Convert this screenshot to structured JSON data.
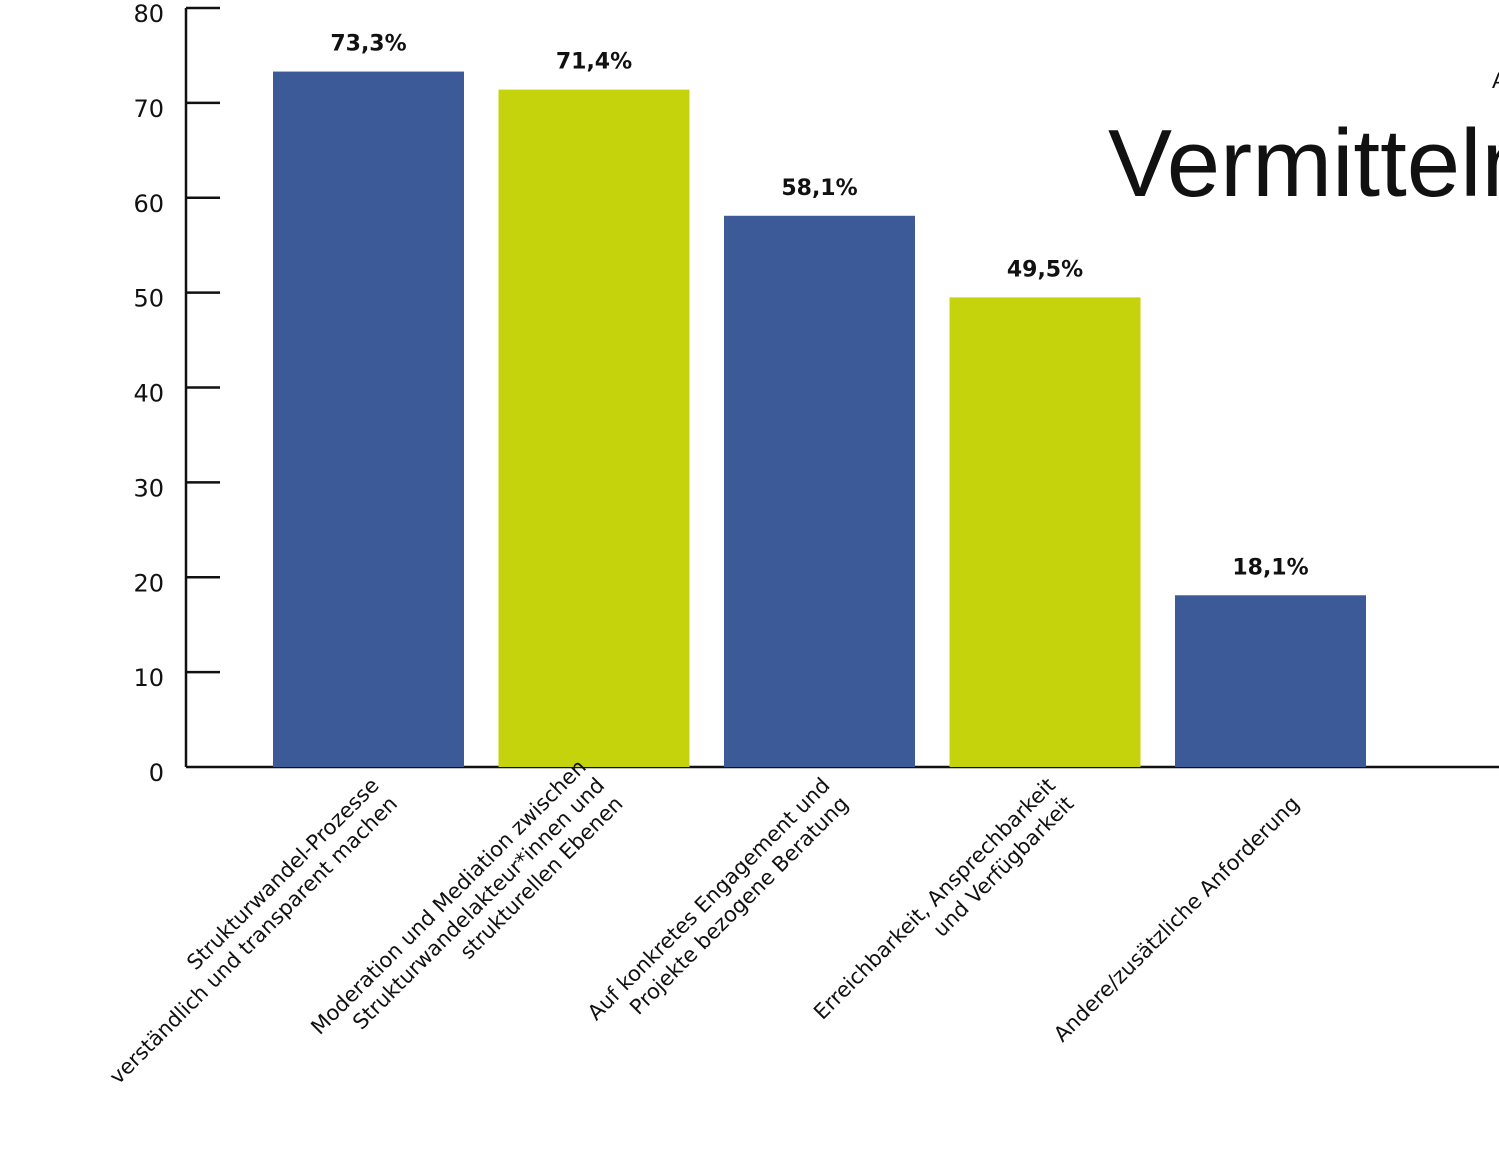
{
  "title": "Vermitteln",
  "title_fragment": "A",
  "chart_data": {
    "type": "bar",
    "categories": [
      [
        "Strukturwandel-Prozesse",
        "verständlich und transparent machen"
      ],
      [
        "Moderation und Mediation zwischen",
        "Strukturwandelakteur*innen und",
        "strukturellen Ebenen"
      ],
      [
        "Auf konkretes Engagement und",
        "Projekte bezogene Beratung"
      ],
      [
        "Erreichbarkeit, Ansprechbarkeit",
        "und Verfügbarkeit"
      ],
      [
        "Andere/zusätzliche Anforderung"
      ]
    ],
    "values": [
      73.3,
      71.4,
      58.1,
      49.5,
      18.1
    ],
    "value_labels": [
      "73,3%",
      "71,4%",
      "58,1%",
      "49,5%",
      "18,1%"
    ],
    "colors": [
      "#3d5a98",
      "#c5d30c",
      "#3d5a98",
      "#c5d30c",
      "#3d5a98"
    ],
    "ylim": [
      0,
      80
    ],
    "yticks": [
      0,
      10,
      20,
      30,
      40,
      50,
      60,
      70,
      80
    ],
    "grid": false
  }
}
